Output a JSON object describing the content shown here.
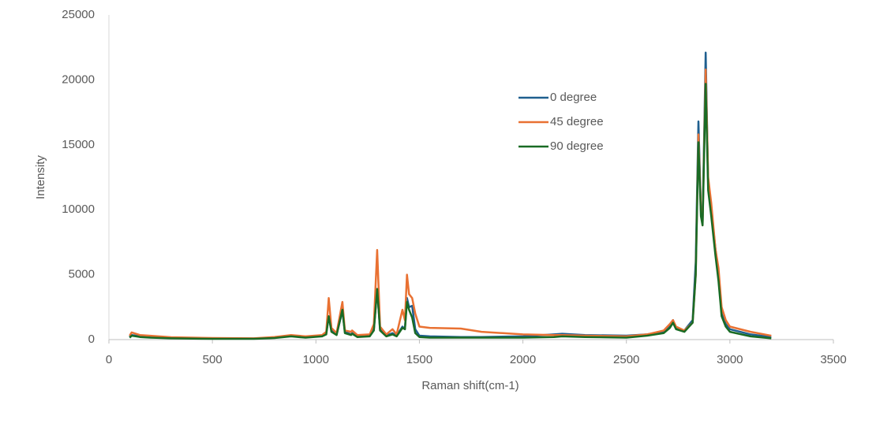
{
  "chart_data": {
    "type": "line",
    "x_label": "Raman shift(cm-1)",
    "y_label": "Intensity",
    "x": [
      100,
      110,
      150,
      200,
      300,
      500,
      700,
      800,
      880,
      950,
      1030,
      1050,
      1062,
      1075,
      1100,
      1128,
      1140,
      1170,
      1175,
      1200,
      1260,
      1280,
      1296,
      1310,
      1340,
      1370,
      1390,
      1418,
      1430,
      1440,
      1450,
      1465,
      1480,
      1500,
      1550,
      1700,
      1800,
      2000,
      2150,
      2190,
      2300,
      2500,
      2600,
      2680,
      2710,
      2725,
      2740,
      2780,
      2820,
      2835,
      2848,
      2860,
      2868,
      2883,
      2895,
      2910,
      2930,
      2945,
      2960,
      2980,
      3000,
      3100,
      3200
    ],
    "series": [
      {
        "name": "0 degree",
        "color": "#1f5f8f",
        "values": [
          200,
          350,
          250,
          200,
          120,
          80,
          80,
          150,
          300,
          200,
          300,
          500,
          1800,
          700,
          400,
          2200,
          600,
          400,
          500,
          250,
          300,
          800,
          3900,
          800,
          300,
          500,
          300,
          1000,
          800,
          3200,
          2500,
          2600,
          800,
          300,
          250,
          200,
          200,
          250,
          400,
          450,
          350,
          300,
          400,
          600,
          1000,
          1500,
          900,
          700,
          1500,
          6000,
          16800,
          10000,
          9000,
          22100,
          12000,
          10000,
          7000,
          5000,
          2000,
          1200,
          800,
          400,
          200
        ]
      },
      {
        "name": "45 degree",
        "color": "#e97132",
        "values": [
          300,
          550,
          350,
          300,
          180,
          120,
          100,
          200,
          350,
          250,
          350,
          600,
          3200,
          900,
          500,
          2900,
          700,
          600,
          700,
          350,
          400,
          1200,
          6900,
          1000,
          400,
          800,
          400,
          2300,
          1500,
          5000,
          3500,
          3200,
          2000,
          1000,
          900,
          850,
          600,
          400,
          350,
          350,
          300,
          250,
          400,
          700,
          1200,
          1500,
          1000,
          700,
          1300,
          5000,
          15800,
          10000,
          8800,
          20800,
          12500,
          10500,
          7000,
          5500,
          2500,
          1500,
          1000,
          600,
          300
        ]
      },
      {
        "name": "90 degree",
        "color": "#196b24",
        "values": [
          150,
          300,
          200,
          150,
          100,
          60,
          60,
          120,
          250,
          150,
          250,
          400,
          1800,
          600,
          350,
          2300,
          500,
          350,
          450,
          200,
          250,
          700,
          3900,
          700,
          250,
          400,
          250,
          900,
          800,
          2900,
          2300,
          1700,
          500,
          200,
          150,
          150,
          150,
          150,
          200,
          250,
          200,
          150,
          300,
          500,
          900,
          1300,
          800,
          600,
          1300,
          5000,
          15200,
          9500,
          8800,
          19700,
          11500,
          9500,
          6500,
          4500,
          1800,
          1000,
          600,
          250,
          100
        ]
      }
    ],
    "xlim": [
      0,
      3500
    ],
    "xticks": [
      0,
      500,
      1000,
      1500,
      2000,
      2500,
      3000,
      3500
    ],
    "ylim": [
      0,
      25000
    ],
    "yticks": [
      0,
      5000,
      10000,
      15000,
      20000,
      25000
    ],
    "grid": false,
    "legend": "upper-center"
  }
}
